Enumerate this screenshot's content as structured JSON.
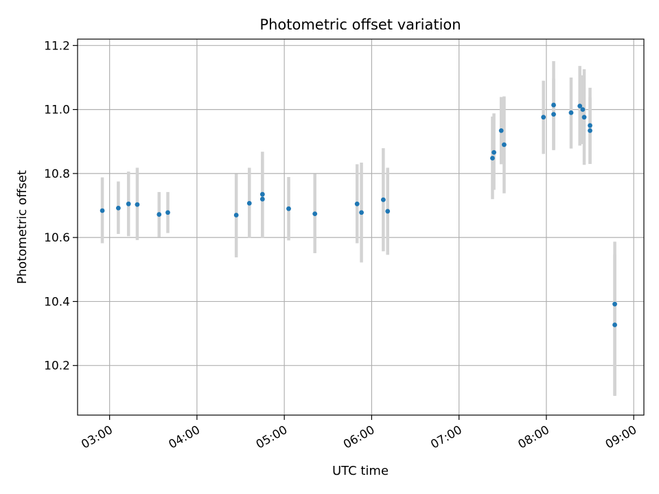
{
  "chart_data": {
    "type": "scatter",
    "title": "Photometric offset variation",
    "xlabel": "UTC time",
    "ylabel": "Photometric offset",
    "xlim": [
      "02:38",
      "09:07"
    ],
    "ylim": [
      10.045,
      11.22
    ],
    "grid": true,
    "x_ticks": [
      "03:00",
      "04:00",
      "05:00",
      "06:00",
      "07:00",
      "08:00",
      "09:00"
    ],
    "y_ticks": [
      10.2,
      10.4,
      10.6,
      10.8,
      11.0,
      11.2
    ],
    "point_color": "#1f77b4",
    "errorbar_color": "#d3d3d3",
    "points": [
      {
        "x": "02:55",
        "y": 10.684,
        "low": 10.582,
        "high": 10.788
      },
      {
        "x": "03:06",
        "y": 10.692,
        "low": 10.611,
        "high": 10.775
      },
      {
        "x": "03:13",
        "y": 10.705,
        "low": 10.604,
        "high": 10.806
      },
      {
        "x": "03:19",
        "y": 10.703,
        "low": 10.592,
        "high": 10.818
      },
      {
        "x": "03:34",
        "y": 10.672,
        "low": 10.601,
        "high": 10.742
      },
      {
        "x": "03:40",
        "y": 10.678,
        "low": 10.614,
        "high": 10.742
      },
      {
        "x": "04:27",
        "y": 10.67,
        "low": 10.538,
        "high": 10.799
      },
      {
        "x": "04:36",
        "y": 10.707,
        "low": 10.599,
        "high": 10.818
      },
      {
        "x": "04:45",
        "y": 10.735,
        "low": 10.599,
        "high": 10.868
      },
      {
        "x": "04:45",
        "y": 10.72,
        "low": 10.599,
        "high": 10.844
      },
      {
        "x": "05:03",
        "y": 10.69,
        "low": 10.591,
        "high": 10.789
      },
      {
        "x": "05:21",
        "y": 10.674,
        "low": 10.551,
        "high": 10.799
      },
      {
        "x": "05:50",
        "y": 10.705,
        "low": 10.582,
        "high": 10.829
      },
      {
        "x": "05:53",
        "y": 10.678,
        "low": 10.522,
        "high": 10.834
      },
      {
        "x": "06:08",
        "y": 10.718,
        "low": 10.557,
        "high": 10.879
      },
      {
        "x": "06:11",
        "y": 10.682,
        "low": 10.546,
        "high": 10.818
      },
      {
        "x": "07:23",
        "y": 10.848,
        "low": 10.72,
        "high": 10.978
      },
      {
        "x": "07:24",
        "y": 10.866,
        "low": 10.749,
        "high": 10.988
      },
      {
        "x": "07:29",
        "y": 10.934,
        "low": 10.829,
        "high": 11.039
      },
      {
        "x": "07:31",
        "y": 10.89,
        "low": 10.738,
        "high": 11.041
      },
      {
        "x": "07:58",
        "y": 10.976,
        "low": 10.861,
        "high": 11.09
      },
      {
        "x": "08:05",
        "y": 10.985,
        "low": 10.873,
        "high": 11.097
      },
      {
        "x": "08:05",
        "y": 11.014,
        "low": 10.875,
        "high": 11.151
      },
      {
        "x": "08:17",
        "y": 10.99,
        "low": 10.878,
        "high": 11.1
      },
      {
        "x": "08:23",
        "y": 11.011,
        "low": 10.887,
        "high": 11.136
      },
      {
        "x": "08:25",
        "y": 11.0,
        "low": 10.892,
        "high": 11.107
      },
      {
        "x": "08:26",
        "y": 10.976,
        "low": 10.827,
        "high": 11.126
      },
      {
        "x": "08:30",
        "y": 10.95,
        "low": 10.83,
        "high": 11.068
      },
      {
        "x": "08:30",
        "y": 10.934,
        "low": 10.83,
        "high": 11.038
      },
      {
        "x": "08:47",
        "y": 10.392,
        "low": 10.105,
        "high": 10.587
      },
      {
        "x": "08:47",
        "y": 10.327,
        "low": 10.107,
        "high": 10.547
      }
    ]
  }
}
